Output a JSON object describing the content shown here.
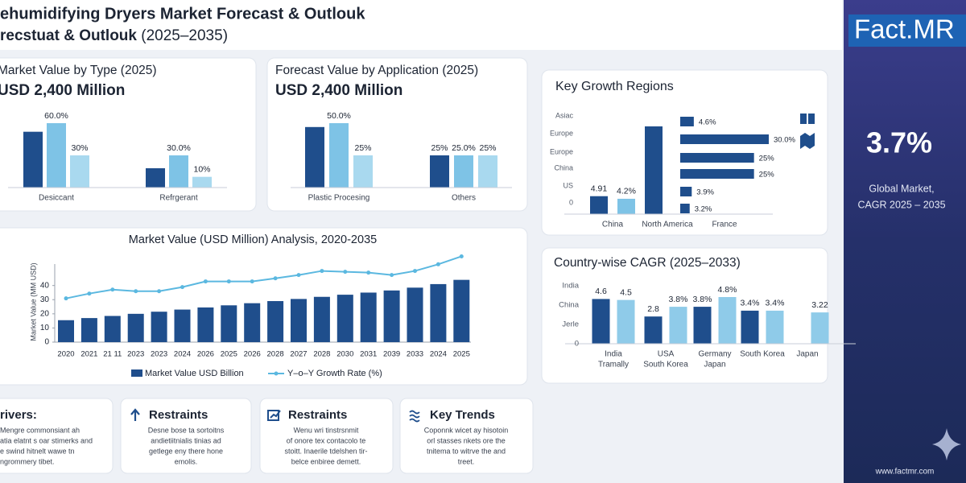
{
  "header": {
    "title": "ehumidifying Dryers Market Forecast & Outlouk",
    "subtitle": "recstuat & Outlouk",
    "subtitle_years": "(2025–2035)"
  },
  "sidebar": {
    "logo": "Fact.MR",
    "cagr": "3.7%",
    "caption": [
      "Global Market,",
      "CAGR 2025 – 2035"
    ],
    "website": "www.factmr.com"
  },
  "chart_data": [
    {
      "type": "bar",
      "title": "Market Value by Type (2025)",
      "subtitle": "USD 2,400 Million",
      "categories": [
        "Desiccant",
        "Refrgerant"
      ],
      "series": [
        {
          "color": "#1f4e8c",
          "values": [
            52,
            18
          ]
        },
        {
          "color": "#7ec3e6",
          "values": [
            60,
            30
          ],
          "value_labels": [
            "60.0%",
            "30.0%"
          ]
        },
        {
          "color": "#a9d9ef",
          "values": [
            30,
            10
          ],
          "value_labels": [
            "30%",
            "10%"
          ]
        }
      ]
    },
    {
      "type": "bar",
      "title": "Forecast Value by Application  (2025)",
      "subtitle": "USD 2,400 Million",
      "categories": [
        "Plastic Procesing",
        "Others"
      ],
      "series": [
        {
          "color": "#1f4e8c",
          "values": [
            47,
            25
          ],
          "value_labels": [
            null,
            "25%"
          ]
        },
        {
          "color": "#7ec3e6",
          "values": [
            50,
            25
          ],
          "value_labels": [
            "50.0%",
            "25.0%"
          ]
        },
        {
          "color": "#a9d9ef",
          "values": [
            25,
            25
          ],
          "value_labels": [
            "25%",
            "25%"
          ]
        }
      ]
    },
    {
      "type": "bar-line",
      "title": "Market Value (USD Million) Analysis, 2020-2035",
      "ylabel": "Market Value (MM USD)",
      "categories": [
        "2020",
        "2021",
        "21 11",
        "2023",
        "2023",
        "2024",
        "2026",
        "2025",
        "2026",
        "2028",
        "2027",
        "2028",
        "2030",
        "2031",
        "2039",
        "2033",
        "2024",
        "2025"
      ],
      "ylim": [
        0,
        62
      ],
      "yticks": [
        0,
        10,
        20,
        30,
        40
      ],
      "series": [
        {
          "name": "Market Value USD Billion",
          "kind": "bar",
          "color": "#1f4e8c",
          "values": [
            15.5,
            17,
            18.5,
            20,
            21.5,
            23,
            24.5,
            26,
            27.5,
            29,
            30.5,
            32,
            33.5,
            35,
            36.5,
            38.5,
            41,
            44
          ]
        },
        {
          "name": "Y–o–Y Growth Rate (%)",
          "kind": "line",
          "color": "#5bb8e0",
          "values": [
            30.9,
            34.3,
            37.1,
            36,
            36,
            38.9,
            42.9,
            42.9,
            42.9,
            45.1,
            47.4,
            50.3,
            49.7,
            49.1,
            47.4,
            50.3,
            55,
            60.6
          ]
        }
      ]
    },
    {
      "type": "hbar",
      "title": "Key Growth Regions",
      "categories": [
        "Asiac",
        "Europe",
        "Europe",
        "China",
        "US",
        "0"
      ],
      "values": [
        4.6,
        30.0,
        25,
        25,
        3.9,
        3.2
      ],
      "value_labels": [
        "4.6%",
        "30.0%",
        "25%",
        "25%",
        "3.9%",
        "3.2%"
      ],
      "color": "#1f4e8c"
    },
    {
      "type": "bar",
      "categories": [
        "China",
        "North America",
        "France"
      ],
      "series": [
        {
          "color": "#1f4e8c",
          "values": [
            4.91,
            24,
            null
          ],
          "value_labels": [
            "4.91",
            null,
            null
          ]
        },
        {
          "color": "#7ec3e6",
          "values": [
            4.2,
            null,
            null
          ],
          "value_labels": [
            "4.2%",
            null,
            null
          ]
        }
      ]
    },
    {
      "type": "bar",
      "title": "Country-wise CAGR (2025–2033)",
      "axis_labels": [
        "India",
        "China",
        "Jerle",
        "0"
      ],
      "categories": [
        [
          "India",
          "Tramally"
        ],
        [
          "USA",
          "South Korea"
        ],
        [
          "Germany",
          "Japan"
        ],
        [
          "South Korea"
        ],
        [
          "Japan"
        ]
      ],
      "series": [
        {
          "color": "#1f4e8c",
          "values": [
            4.6,
            2.8,
            3.8,
            3.4,
            null
          ],
          "value_labels": [
            "4.6",
            "2.8",
            "3.8%",
            "3.4%",
            null
          ]
        },
        {
          "color": "#8fcbe9",
          "values": [
            4.5,
            3.8,
            4.8,
            3.4,
            3.22
          ],
          "value_labels": [
            "4.5",
            "3.8%",
            "4.8%",
            "3.4%",
            "3.22"
          ]
        }
      ]
    }
  ],
  "cards": [
    {
      "title": "rivers:",
      "lines": [
        "Mengre commonsiant ah",
        "atia elatnt s oar stimerks and",
        "e swind hitnelt wawe tn",
        "ngrommery tibet."
      ]
    },
    {
      "title": "Restraints",
      "lines": [
        "Desne bose ta sortoitns",
        "andietiitnialis tinias ad",
        "getlege eny there hone",
        "emolis."
      ]
    },
    {
      "title": "Restraints",
      "lines": [
        "Wenu wri tinstrsnmit",
        "of onore tex contacolo te",
        "stoitt. Inaerile tdelshen tir-",
        "belce enbiree demett."
      ]
    },
    {
      "title": "Key Trends",
      "lines": [
        "Coponnk wicet ay hisotoin",
        "orl stasses nkets ore the",
        "tnitema to witrve the and",
        "treet."
      ]
    }
  ]
}
